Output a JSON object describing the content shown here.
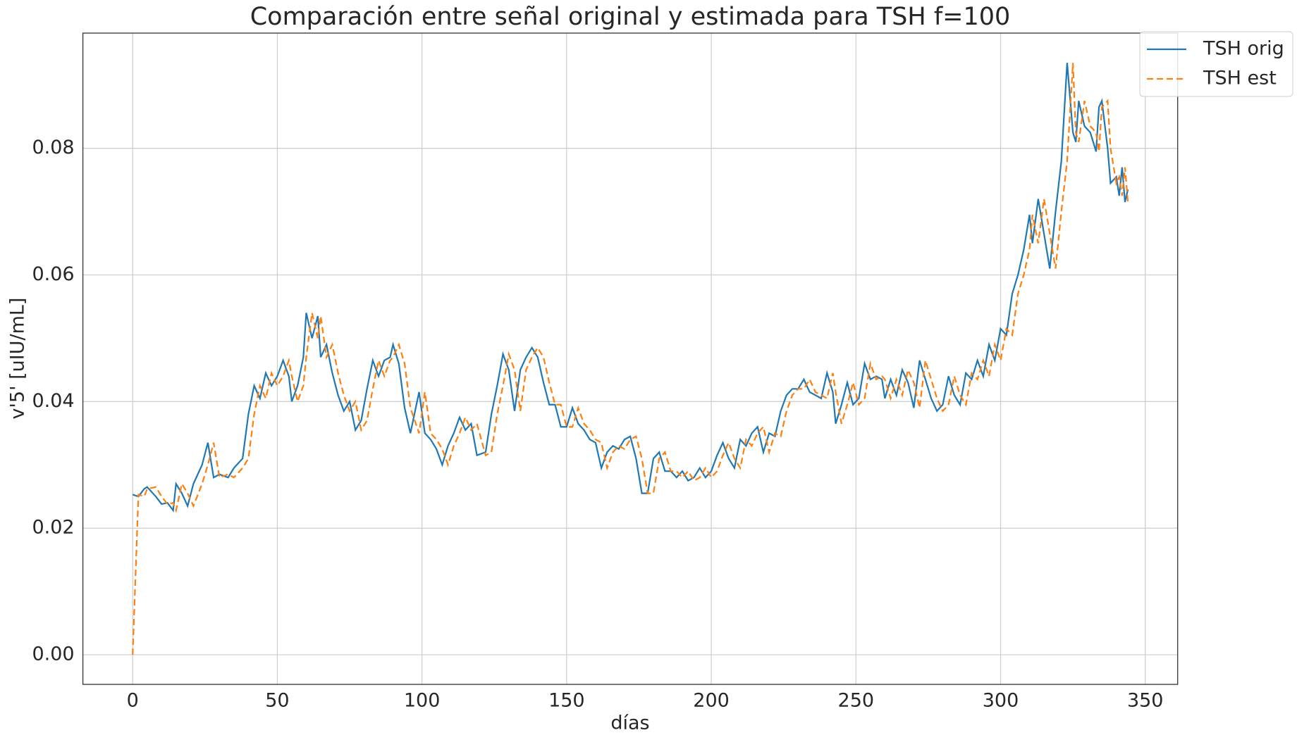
{
  "chart_data": {
    "type": "line",
    "title": "Comparación entre señal original y estimada para TSH f=100",
    "xlabel": "días",
    "ylabel": "v'5' [uIU/mL]",
    "x": [
      0,
      2,
      4,
      5,
      8,
      10,
      12,
      14,
      15,
      17,
      19,
      21,
      24,
      26,
      28,
      30,
      33,
      35,
      38,
      40,
      42,
      44,
      46,
      48,
      50,
      52,
      54,
      55,
      57,
      59,
      60,
      62,
      64,
      65,
      67,
      69,
      71,
      73,
      75,
      77,
      79,
      81,
      83,
      85,
      87,
      89,
      90,
      92,
      94,
      96,
      99,
      101,
      103,
      105,
      107,
      109,
      111,
      113,
      115,
      117,
      119,
      122,
      124,
      126,
      128,
      130,
      132,
      134,
      136,
      138,
      140,
      142,
      144,
      146,
      148,
      150,
      152,
      154,
      156,
      158,
      160,
      162,
      164,
      166,
      168,
      170,
      172,
      174,
      176,
      178,
      180,
      182,
      184,
      186,
      188,
      190,
      192,
      194,
      196,
      198,
      200,
      202,
      204,
      206,
      208,
      210,
      212,
      214,
      216,
      218,
      220,
      222,
      224,
      226,
      228,
      230,
      232,
      234,
      236,
      238,
      240,
      242,
      243,
      245,
      247,
      249,
      251,
      253,
      255,
      257,
      259,
      260,
      262,
      264,
      266,
      268,
      270,
      272,
      274,
      276,
      278,
      280,
      282,
      284,
      286,
      288,
      290,
      292,
      294,
      296,
      298,
      300,
      302,
      304,
      306,
      308,
      310,
      311,
      313,
      315,
      317,
      319,
      321,
      323,
      325,
      326,
      327,
      329,
      331,
      333,
      334,
      335,
      337,
      338,
      340,
      341,
      342,
      343,
      344
    ],
    "series": [
      {
        "name": "TSH orig",
        "color": "#1f77b4",
        "dash": "none",
        "values": [
          0.0253,
          0.025,
          0.0262,
          0.0265,
          0.025,
          0.0238,
          0.024,
          0.0228,
          0.027,
          0.0255,
          0.0235,
          0.027,
          0.03,
          0.0335,
          0.028,
          0.0285,
          0.028,
          0.0295,
          0.031,
          0.038,
          0.0425,
          0.0405,
          0.0445,
          0.0425,
          0.044,
          0.0465,
          0.044,
          0.04,
          0.0425,
          0.047,
          0.054,
          0.05,
          0.0535,
          0.047,
          0.049,
          0.0445,
          0.041,
          0.0385,
          0.04,
          0.0355,
          0.037,
          0.042,
          0.0465,
          0.044,
          0.0465,
          0.047,
          0.049,
          0.046,
          0.039,
          0.035,
          0.0415,
          0.035,
          0.034,
          0.0325,
          0.03,
          0.033,
          0.035,
          0.0375,
          0.0355,
          0.0365,
          0.0315,
          0.032,
          0.038,
          0.0425,
          0.0475,
          0.045,
          0.0385,
          0.045,
          0.047,
          0.0485,
          0.047,
          0.043,
          0.0395,
          0.0395,
          0.036,
          0.036,
          0.039,
          0.0365,
          0.0355,
          0.034,
          0.0335,
          0.0295,
          0.032,
          0.033,
          0.0325,
          0.034,
          0.0345,
          0.031,
          0.0255,
          0.0255,
          0.031,
          0.032,
          0.029,
          0.029,
          0.028,
          0.029,
          0.0275,
          0.028,
          0.0295,
          0.028,
          0.029,
          0.0315,
          0.0335,
          0.031,
          0.0295,
          0.034,
          0.033,
          0.035,
          0.036,
          0.032,
          0.035,
          0.0345,
          0.0385,
          0.041,
          0.042,
          0.042,
          0.0435,
          0.0415,
          0.041,
          0.0405,
          0.0445,
          0.0415,
          0.0365,
          0.0395,
          0.043,
          0.0395,
          0.0405,
          0.046,
          0.0435,
          0.044,
          0.0435,
          0.0405,
          0.0435,
          0.041,
          0.045,
          0.043,
          0.039,
          0.0465,
          0.0435,
          0.0405,
          0.0385,
          0.0395,
          0.044,
          0.041,
          0.0395,
          0.0445,
          0.0435,
          0.0465,
          0.044,
          0.049,
          0.0465,
          0.0515,
          0.0505,
          0.057,
          0.06,
          0.064,
          0.0695,
          0.065,
          0.072,
          0.0665,
          0.061,
          0.07,
          0.078,
          0.0935,
          0.0825,
          0.081,
          0.0875,
          0.0835,
          0.0825,
          0.0795,
          0.0865,
          0.0875,
          0.08,
          0.0745,
          0.0755,
          0.0725,
          0.077,
          0.0715,
          0.0735
        ]
      },
      {
        "name": "TSH est",
        "color": "#ff7f0e",
        "dash": "9 5",
        "values": [
          0,
          0.0253,
          0.025,
          0.0262,
          0.0265,
          0.025,
          0.0238,
          0.024,
          0.0228,
          0.027,
          0.0255,
          0.0235,
          0.027,
          0.03,
          0.0335,
          0.028,
          0.0285,
          0.028,
          0.0295,
          0.031,
          0.038,
          0.0425,
          0.0405,
          0.0445,
          0.0425,
          0.044,
          0.0465,
          0.044,
          0.04,
          0.0425,
          0.047,
          0.054,
          0.05,
          0.0535,
          0.047,
          0.049,
          0.0445,
          0.041,
          0.0385,
          0.04,
          0.0355,
          0.037,
          0.042,
          0.0465,
          0.044,
          0.0465,
          0.047,
          0.049,
          0.046,
          0.039,
          0.035,
          0.0415,
          0.035,
          0.034,
          0.0325,
          0.03,
          0.033,
          0.035,
          0.0375,
          0.0355,
          0.0365,
          0.0315,
          0.032,
          0.038,
          0.0425,
          0.0475,
          0.045,
          0.0385,
          0.045,
          0.047,
          0.0485,
          0.047,
          0.043,
          0.0395,
          0.0395,
          0.036,
          0.036,
          0.039,
          0.0365,
          0.0355,
          0.034,
          0.0335,
          0.0295,
          0.032,
          0.033,
          0.0325,
          0.034,
          0.0345,
          0.031,
          0.0255,
          0.0255,
          0.031,
          0.032,
          0.029,
          0.029,
          0.028,
          0.029,
          0.0275,
          0.028,
          0.0295,
          0.028,
          0.029,
          0.0315,
          0.0335,
          0.031,
          0.0295,
          0.034,
          0.033,
          0.035,
          0.036,
          0.032,
          0.035,
          0.0345,
          0.0385,
          0.041,
          0.042,
          0.042,
          0.0435,
          0.0415,
          0.041,
          0.0405,
          0.0445,
          0.0415,
          0.0365,
          0.0395,
          0.043,
          0.0395,
          0.0405,
          0.046,
          0.0435,
          0.044,
          0.0435,
          0.0405,
          0.0435,
          0.041,
          0.045,
          0.043,
          0.039,
          0.0465,
          0.0435,
          0.0405,
          0.0385,
          0.0395,
          0.044,
          0.041,
          0.0395,
          0.0445,
          0.0435,
          0.0465,
          0.044,
          0.049,
          0.0465,
          0.0515,
          0.0505,
          0.057,
          0.06,
          0.064,
          0.0695,
          0.065,
          0.072,
          0.0665,
          0.061,
          0.07,
          0.078,
          0.0935,
          0.0825,
          0.081,
          0.0875,
          0.0835,
          0.0825,
          0.0795,
          0.0865,
          0.0875,
          0.08,
          0.0745,
          0.0755,
          0.0725,
          0.077,
          0.0715
        ]
      }
    ],
    "xlim": [
      -17.2,
      361.2
    ],
    "ylim": [
      -0.00468,
      0.0982
    ],
    "xticks": [
      0,
      50,
      100,
      150,
      200,
      250,
      300,
      350
    ],
    "yticks": [
      {
        "value": 0,
        "label": "0.00"
      },
      {
        "value": 0.02,
        "label": "0.02"
      },
      {
        "value": 0.04,
        "label": "0.04"
      },
      {
        "value": 0.06,
        "label": "0.06"
      },
      {
        "value": 0.08,
        "label": "0.08"
      }
    ],
    "grid": true,
    "legend": "upper right"
  }
}
